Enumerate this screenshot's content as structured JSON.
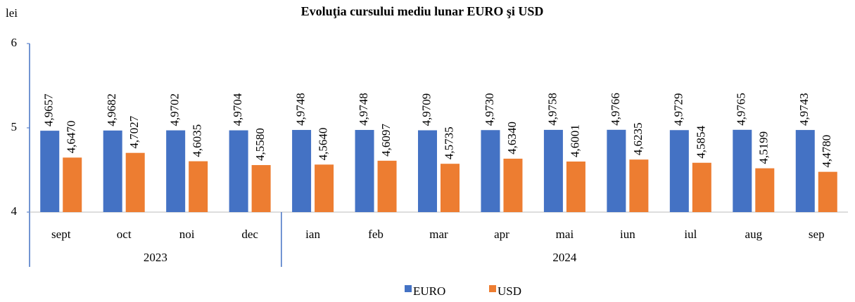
{
  "chart_data": {
    "type": "bar",
    "title": "Evoluţia cursului mediu lunar EURO şi USD",
    "y_label": "lei",
    "categories": [
      "sept",
      "oct",
      "noi",
      "dec",
      "ian",
      "feb",
      "mar",
      "apr",
      "mai",
      "iun",
      "iul",
      "aug",
      "sep"
    ],
    "x_groups": [
      {
        "label": "2023",
        "span": 4
      },
      {
        "label": "2024",
        "span": 9
      }
    ],
    "series": [
      {
        "name": "EURO",
        "color": "#4472c4",
        "values": [
          4.9657,
          4.9682,
          4.9702,
          4.9704,
          4.9748,
          4.9748,
          4.9709,
          4.973,
          4.9758,
          4.9766,
          4.9729,
          4.9765,
          4.9743
        ],
        "value_labels": [
          "4,9657",
          "4,9682",
          "4,9702",
          "4,9704",
          "4,9748",
          "4,9748",
          "4,9709",
          "4,9730",
          "4,9758",
          "4,9766",
          "4,9729",
          "4,9765",
          "4,9743"
        ]
      },
      {
        "name": "USD",
        "color": "#ed7d31",
        "values": [
          4.647,
          4.7027,
          4.6035,
          4.558,
          4.564,
          4.6097,
          4.5735,
          4.634,
          4.6001,
          4.6235,
          4.5854,
          4.5199,
          4.478
        ],
        "value_labels": [
          "4,6470",
          "4,7027",
          "4,6035",
          "4,5580",
          "4,5640",
          "4,6097",
          "4,5735",
          "4,6340",
          "4,6001",
          "4,6235",
          "4,5854",
          "4,5199",
          "4,4780"
        ]
      }
    ],
    "ylim": [
      4,
      6
    ],
    "yticks": [
      4,
      5,
      6
    ],
    "grid": false,
    "legend": "bottom"
  }
}
